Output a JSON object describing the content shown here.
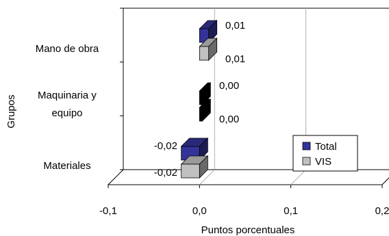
{
  "chart_data": {
    "type": "bar",
    "orientation": "horizontal",
    "three_d": true,
    "title": "",
    "xlabel": "Puntos porcentuales",
    "ylabel": "Grupos",
    "categories": [
      "Mano de obra",
      "Maquinaria y equipo",
      "Materiales"
    ],
    "category_lines": [
      [
        "Mano de obra"
      ],
      [
        "Maquinaria y",
        "equipo"
      ],
      [
        "Materiales"
      ]
    ],
    "series": [
      {
        "name": "Total",
        "values": [
          0.01,
          0.0,
          -0.02
        ],
        "labels": [
          "0,01",
          "0,00",
          "-0,02"
        ],
        "color": "#333399"
      },
      {
        "name": "VIS",
        "values": [
          0.01,
          0.0,
          -0.02
        ],
        "labels": [
          "0,01",
          "0,00",
          "-0,02"
        ],
        "color": "#c0c0c0"
      }
    ],
    "xlim": [
      -0.1,
      0.2
    ],
    "xticks": [
      -0.1,
      0.0,
      0.1,
      0.2
    ],
    "xtick_labels": [
      "-0,1",
      "0,0",
      "0,1",
      "0,2"
    ],
    "grid": true,
    "legend": "lower-right"
  }
}
